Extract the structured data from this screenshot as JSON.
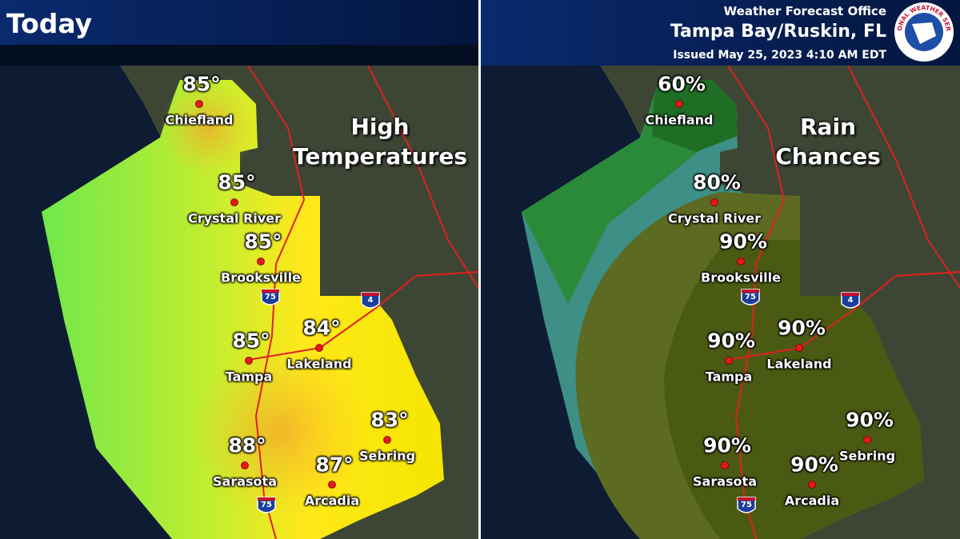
{
  "header": {
    "title": "Today",
    "office": "Weather Forecast Office",
    "location": "Tampa Bay/Ruskin, FL",
    "issued": "Issued May 25, 2023 4:10 AM EDT",
    "logo_text": "NATIONAL WEATHER SERVICE"
  },
  "panels": [
    {
      "title": "High Temperatures",
      "cities": [
        {
          "name": "Chiefland",
          "value": "85°"
        },
        {
          "name": "Crystal River",
          "value": "85°"
        },
        {
          "name": "Brooksville",
          "value": "85°"
        },
        {
          "name": "Tampa",
          "value": "85°"
        },
        {
          "name": "Lakeland",
          "value": "84°"
        },
        {
          "name": "Sarasota",
          "value": "88°"
        },
        {
          "name": "Arcadia",
          "value": "87°"
        },
        {
          "name": "Sebring",
          "value": "83°"
        }
      ],
      "shields": [
        "75",
        "4",
        "75"
      ]
    },
    {
      "title": "Rain Chances",
      "cities": [
        {
          "name": "Chiefland",
          "value": "60%"
        },
        {
          "name": "Crystal River",
          "value": "80%"
        },
        {
          "name": "Brooksville",
          "value": "90%"
        },
        {
          "name": "Tampa",
          "value": "90%"
        },
        {
          "name": "Lakeland",
          "value": "90%"
        },
        {
          "name": "Sarasota",
          "value": "90%"
        },
        {
          "name": "Arcadia",
          "value": "90%"
        },
        {
          "name": "Sebring",
          "value": "90%"
        }
      ],
      "shields": [
        "75",
        "4",
        "75"
      ]
    }
  ]
}
